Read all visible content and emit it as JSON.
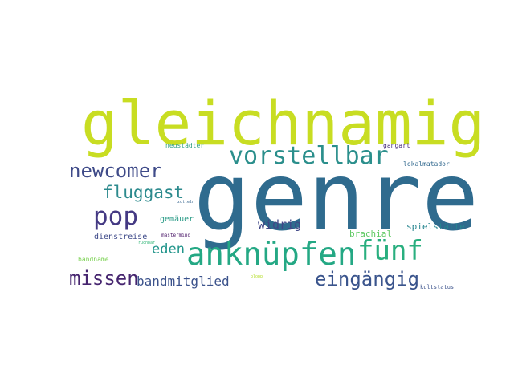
{
  "wordcloud": {
    "words": [
      {
        "text": "gleichnamig",
        "color": "#c8dd22"
      },
      {
        "text": "genre",
        "color": "#2f6b8e"
      },
      {
        "text": "vorstellbar",
        "color": "#2b8f8c"
      },
      {
        "text": "newcomer",
        "color": "#3f4b89"
      },
      {
        "text": "fluggast",
        "color": "#2c8a8d"
      },
      {
        "text": "pop",
        "color": "#443983"
      },
      {
        "text": "anknüpfen",
        "color": "#24a884"
      },
      {
        "text": "fünf",
        "color": "#29af7f"
      },
      {
        "text": "missen",
        "color": "#46256f"
      },
      {
        "text": "bandmitglied",
        "color": "#3b528b"
      },
      {
        "text": "eingängig",
        "color": "#3a548c"
      },
      {
        "text": "eden",
        "color": "#22958b"
      },
      {
        "text": "widrig",
        "color": "#404787"
      },
      {
        "text": "brachial",
        "color": "#5ec962"
      },
      {
        "text": "spielstätte",
        "color": "#25848e"
      },
      {
        "text": "gemäuer",
        "color": "#2e9d89"
      },
      {
        "text": "dienstreise",
        "color": "#3e4a89"
      },
      {
        "text": "lokalmatador",
        "color": "#30688e"
      },
      {
        "text": "neustädter",
        "color": "#31a085"
      },
      {
        "text": "gangart",
        "color": "#472c7a"
      },
      {
        "text": "mastermind",
        "color": "#471365"
      },
      {
        "text": "kultstatus",
        "color": "#3b528b"
      },
      {
        "text": "bandname",
        "color": "#7ad151"
      },
      {
        "text": "ruchbar",
        "color": "#35b779"
      },
      {
        "text": "zotteln",
        "color": "#33638d"
      },
      {
        "text": "plopp",
        "color": "#b5de2b"
      }
    ]
  }
}
